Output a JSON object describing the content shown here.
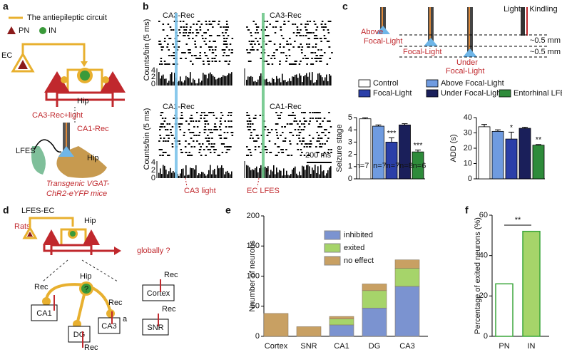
{
  "panels": {
    "a": {
      "label": "a",
      "legend_title": "The antiepileptic circuit",
      "pn": "PN",
      "in": "IN",
      "ec": "EC",
      "hip": "Hip",
      "rec_light": "CA3-Rec+light",
      "ca1_rec": "CA1-Rec",
      "lfes": "LFES",
      "hip2": "Hip",
      "caption": [
        "Transgenic VGAT-",
        "ChR2-eYFP mice"
      ]
    },
    "b": {
      "label": "b",
      "titles": [
        "CA3-Rec",
        "CA3-Rec",
        "CA1-Rec",
        "CA1-Rec"
      ],
      "ylabel": "Counts/bin (5 ms)",
      "ticks": [
        "4",
        "2",
        "0"
      ],
      "scale": "200 ms",
      "markers": [
        "CA3 light",
        "EC LFES"
      ],
      "star": "*"
    },
    "c": {
      "label": "c",
      "light": "Light",
      "kindling": "Kindling",
      "positions": [
        [
          "Above",
          "Focal-Light"
        ],
        [
          "Focal-Light"
        ],
        [
          "Under",
          "Focal-Light"
        ]
      ],
      "distance": "~0.5 mm"
    },
    "d": {
      "label": "d",
      "lfes_ec": "LFES-EC",
      "hip": "Hip",
      "rats": "Rats",
      "globally": "globally ?",
      "rec": "Rec",
      "question": "?",
      "ca1": "CA1",
      "dg": "DG",
      "ca3": "CA3",
      "a": "a",
      "cortex": "Cortex",
      "snr": "SNR"
    },
    "e": {
      "label": "e"
    },
    "f": {
      "label": "f"
    }
  },
  "chart_data": [
    {
      "type": "bar",
      "ylabel": "Seizure stage",
      "categories": [
        "Control",
        "Above Focal-Light",
        "Focal-Light",
        "Under Focal-Light",
        "Entorhinal LFES"
      ],
      "colors": [
        "#ffffff",
        "#6f9be0",
        "#2b3fa8",
        "#1a1f5a",
        "#2e8b3a"
      ],
      "values": [
        4.9,
        4.3,
        3.0,
        4.4,
        2.2
      ],
      "errors": [
        0.08,
        0.1,
        0.35,
        0.1,
        0.15
      ],
      "ylim": [
        0,
        5
      ],
      "yticks": [
        0,
        1,
        2,
        3,
        4,
        5
      ],
      "n_labels": [
        "n=7",
        "n=7",
        "n=7",
        "n=8",
        "n=6"
      ],
      "annotations": [
        {
          "text": "***",
          "bar": 2
        },
        {
          "text": "***",
          "bar": 4
        }
      ]
    },
    {
      "type": "bar",
      "ylabel": "ADD (s)",
      "colors": [
        "#ffffff",
        "#6f9be0",
        "#2b3fa8",
        "#1a1f5a",
        "#2e8b3a"
      ],
      "values": [
        34,
        31,
        26,
        33,
        22
      ],
      "errors": [
        1.5,
        1,
        4.5,
        0.7,
        0.4
      ],
      "ylim": [
        0,
        40
      ],
      "yticks": [
        0,
        10,
        20,
        30,
        40
      ],
      "annotations": [
        {
          "text": "*",
          "bar": 2
        },
        {
          "text": "**",
          "bar": 4
        }
      ]
    },
    {
      "type": "stacked_bar",
      "ylabel": "Nnumber of neurons",
      "categories": [
        "Cortex",
        "SNR",
        "CA1",
        "DG",
        "CA3"
      ],
      "series": [
        {
          "name": "inhibited",
          "color": "#7b93d0",
          "values": [
            0,
            0,
            19,
            47,
            83
          ]
        },
        {
          "name": "exited",
          "color": "#a6d46a",
          "values": [
            0,
            0,
            10,
            29,
            30
          ]
        },
        {
          "name": "no effect",
          "color": "#c8a063",
          "values": [
            38,
            16,
            4,
            11,
            14
          ]
        }
      ],
      "ylim": [
        0,
        200
      ],
      "yticks": [
        0,
        50,
        100,
        150,
        200
      ]
    },
    {
      "type": "bar",
      "ylabel": "Percentage of exited neurons (%)",
      "categories": [
        "PN",
        "IN"
      ],
      "colors": [
        "#ffffff",
        "#a6d46a"
      ],
      "outline": "#3aa53a",
      "values": [
        26,
        52
      ],
      "ylim": [
        0,
        60
      ],
      "yticks": [
        0,
        20,
        40,
        60
      ],
      "significance": "**"
    }
  ]
}
